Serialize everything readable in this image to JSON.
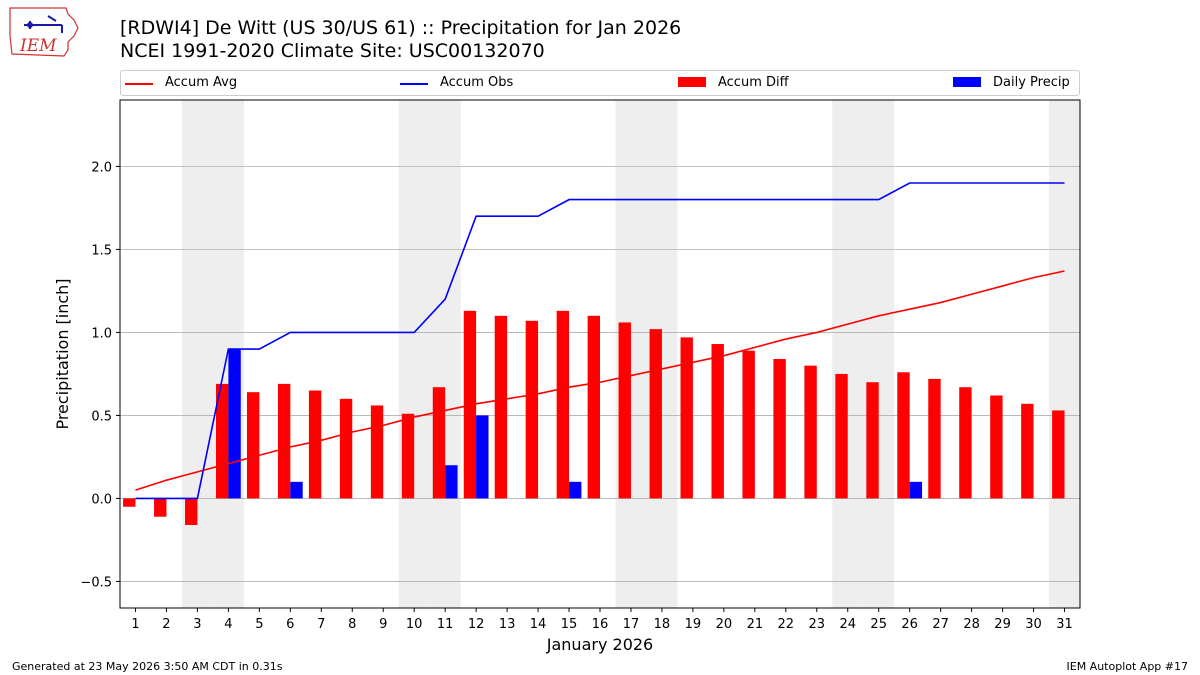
{
  "header": {
    "title_line1": "[RDWI4] De Witt (US 30/US 61) :: Precipitation for Jan 2026",
    "title_line2": "NCEI 1991-2020 Climate Site: USC00132070",
    "logo_text": "IEM"
  },
  "footer": {
    "left": "Generated at 23 May 2026 3:50 AM CDT in 0.31s",
    "right": "IEM Autoplot App #17"
  },
  "colors": {
    "accum_avg": "#ff0000",
    "accum_obs": "#0000ff",
    "accum_diff": "#ff0000",
    "daily_precip": "#0000ff",
    "weekend_shade": "#eeeeee",
    "grid": "#b0b0b0"
  },
  "chart_data": {
    "type": "bar",
    "title": "[RDWI4] De Witt (US 30/US 61) :: Precipitation for Jan 2026",
    "subtitle": "NCEI 1991-2020 Climate Site: USC00132070",
    "xlabel": "January 2026",
    "ylabel": "Precipitation [inch]",
    "ylim": [
      -0.66,
      2.4
    ],
    "yticks": [
      -0.5,
      0.0,
      0.5,
      1.0,
      1.5,
      2.0
    ],
    "ytick_labels": [
      "−0.5",
      "0.0",
      "0.5",
      "1.0",
      "1.5",
      "2.0"
    ],
    "grid": "horizontal",
    "legend_position": "top",
    "categories": [
      "1",
      "2",
      "3",
      "4",
      "5",
      "6",
      "7",
      "8",
      "9",
      "10",
      "11",
      "12",
      "13",
      "14",
      "15",
      "16",
      "17",
      "18",
      "19",
      "20",
      "21",
      "22",
      "23",
      "24",
      "25",
      "26",
      "27",
      "28",
      "29",
      "30",
      "31"
    ],
    "shaded_days": [
      3,
      4,
      10,
      11,
      17,
      18,
      24,
      25,
      31
    ],
    "series": [
      {
        "name": "Accum Avg",
        "kind": "line",
        "values": [
          0.05,
          0.11,
          0.16,
          0.21,
          0.26,
          0.31,
          0.35,
          0.4,
          0.44,
          0.49,
          0.53,
          0.57,
          0.6,
          0.63,
          0.67,
          0.7,
          0.74,
          0.78,
          0.82,
          0.86,
          0.91,
          0.96,
          1.0,
          1.05,
          1.1,
          1.14,
          1.18,
          1.23,
          1.28,
          1.33,
          1.37
        ]
      },
      {
        "name": "Accum Obs",
        "kind": "line",
        "values": [
          0.0,
          0.0,
          0.0,
          0.9,
          0.9,
          1.0,
          1.0,
          1.0,
          1.0,
          1.0,
          1.2,
          1.7,
          1.7,
          1.7,
          1.8,
          1.8,
          1.8,
          1.8,
          1.8,
          1.8,
          1.8,
          1.8,
          1.8,
          1.8,
          1.8,
          1.9,
          1.9,
          1.9,
          1.9,
          1.9,
          1.9
        ]
      },
      {
        "name": "Accum Diff",
        "kind": "bar",
        "values": [
          -0.05,
          -0.11,
          -0.16,
          0.69,
          0.64,
          0.69,
          0.65,
          0.6,
          0.56,
          0.51,
          0.67,
          1.13,
          1.1,
          1.07,
          1.13,
          1.1,
          1.06,
          1.02,
          0.97,
          0.93,
          0.89,
          0.84,
          0.8,
          0.75,
          0.7,
          0.76,
          0.72,
          0.67,
          0.62,
          0.57,
          0.53
        ]
      },
      {
        "name": "Daily Precip",
        "kind": "bar",
        "values": [
          0,
          0,
          0,
          0.9,
          0,
          0.1,
          0,
          0,
          0,
          0,
          0.2,
          0.5,
          0,
          0,
          0.1,
          0,
          0,
          0,
          0,
          0,
          0,
          0,
          0,
          0,
          0,
          0.1,
          0,
          0,
          0,
          0,
          0
        ]
      }
    ]
  }
}
